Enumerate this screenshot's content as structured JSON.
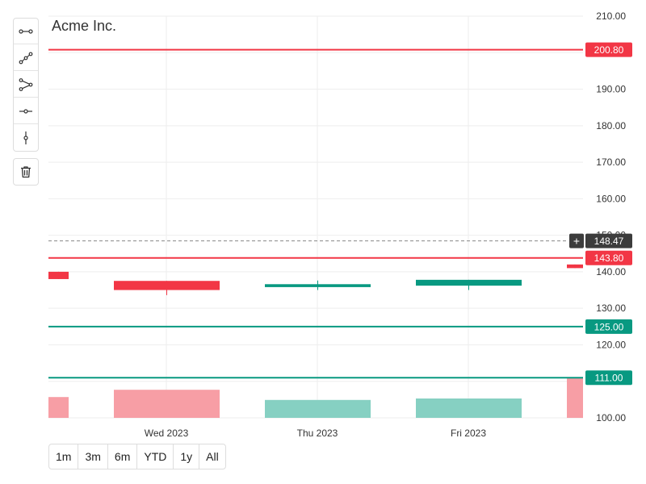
{
  "title": "Acme Inc.",
  "toolbar": {
    "tools": [
      {
        "icon": "segment-icon"
      },
      {
        "icon": "polyline-icon"
      },
      {
        "icon": "branch-line-icon"
      },
      {
        "icon": "horizontal-line-icon"
      },
      {
        "icon": "vertical-line-icon"
      }
    ],
    "delete_icon": "trash-icon"
  },
  "range_selector": {
    "buttons": [
      "1m",
      "3m",
      "6m",
      "YTD",
      "1y",
      "All"
    ]
  },
  "colors": {
    "up": "#089981",
    "down": "#f23645",
    "up_volume": "#86d0c2",
    "down_volume": "#f79ea5",
    "grid": "#eeeeee",
    "crosshair_label_bg": "#3c3c3c"
  },
  "chart_data": {
    "type": "candlestick",
    "title": "Acme Inc.",
    "ylim": [
      100,
      210
    ],
    "y_ticks": [
      "210.00",
      "200.00",
      "190.00",
      "180.00",
      "170.00",
      "160.00",
      "150.00",
      "140.00",
      "130.00",
      "120.00",
      "110.00",
      "100.00"
    ],
    "x_labels": [
      "Wed 2023",
      "Thu 2023",
      "Fri 2023"
    ],
    "grid": true,
    "candles": [
      {
        "open": 140.0,
        "close": 138.0,
        "high": 140.0,
        "low": 138.0,
        "direction": "down",
        "volume_level": 0.215
      },
      {
        "open": 137.5,
        "close": 135.0,
        "high": 137.5,
        "low": 133.6,
        "direction": "down",
        "volume_level": 0.29
      },
      {
        "open": 135.8,
        "close": 136.6,
        "high": 137.6,
        "low": 135.0,
        "direction": "up",
        "volume_level": 0.185
      },
      {
        "open": 136.2,
        "close": 137.8,
        "high": 137.8,
        "low": 135.0,
        "direction": "up",
        "volume_level": 0.2
      },
      {
        "open": 142.0,
        "close": 141.0,
        "high": 142.0,
        "low": 141.0,
        "direction": "down",
        "volume_level": 0.41
      }
    ],
    "price_lines": [
      {
        "value": 200.8,
        "label": "200.80",
        "color": "#f23645"
      },
      {
        "value": 143.8,
        "label": "143.80",
        "color": "#f23645"
      },
      {
        "value": 125.0,
        "label": "125.00",
        "color": "#089981"
      },
      {
        "value": 111.0,
        "label": "111.00",
        "color": "#089981"
      }
    ],
    "crosshair": {
      "value": 148.47,
      "label": "148.47",
      "plus_label": "+"
    }
  }
}
